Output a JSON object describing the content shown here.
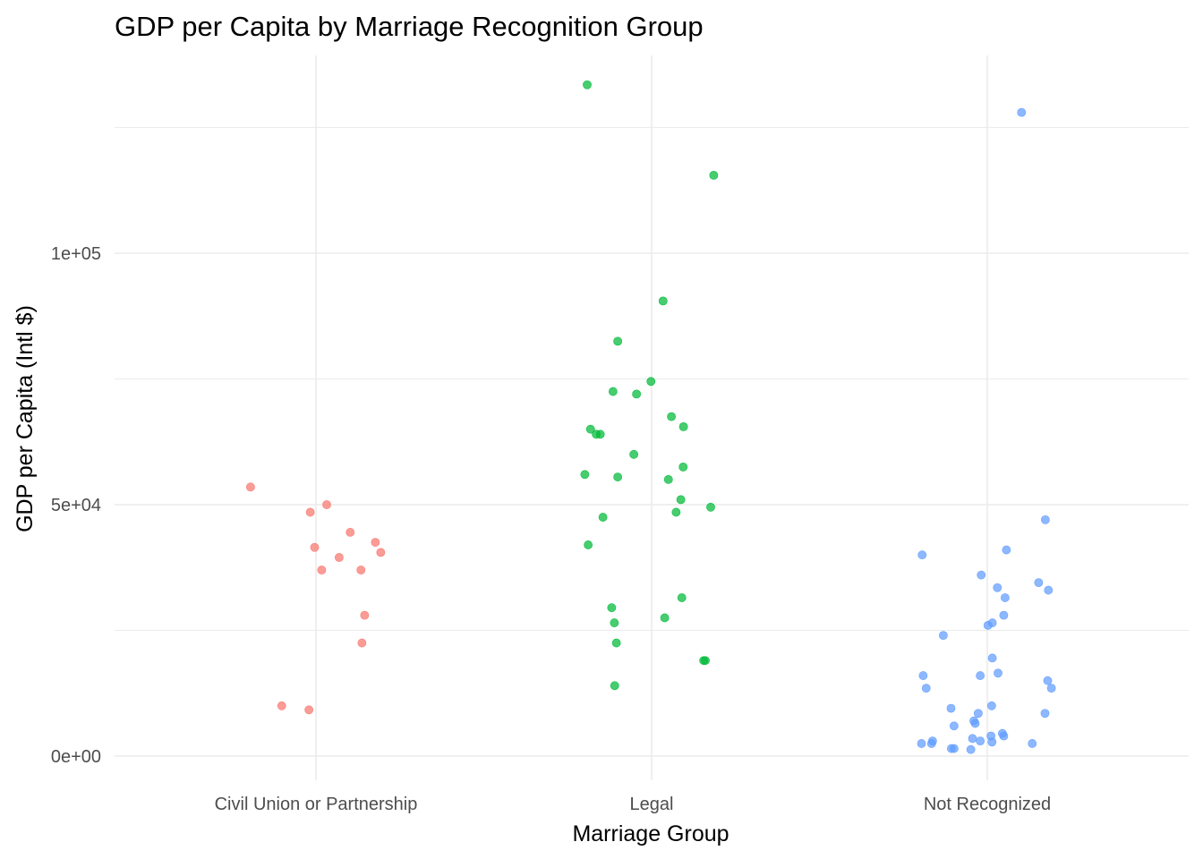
{
  "chart_data": {
    "type": "scatter",
    "title": "GDP per Capita by Marriage Recognition Group",
    "xlabel": "Marriage Group",
    "ylabel": "GDP per Capita (Intl $)",
    "categories": [
      "Civil Union or Partnership",
      "Legal",
      "Not Recognized"
    ],
    "ylim": [
      -4500,
      137000
    ],
    "y_ticks": [
      0,
      50000,
      100000
    ],
    "y_tick_labels": [
      "0e+00",
      "5e+04",
      "1e+05"
    ],
    "grid": true,
    "legend": "none",
    "series": [
      {
        "category": "Civil Union or Partnership",
        "color": "#F8766D",
        "x_jitter": [
          -0.195,
          0.032,
          -0.017,
          0.102,
          -0.004,
          0.177,
          0.193,
          0.069,
          0.017,
          0.134,
          0.145,
          0.137,
          -0.102,
          -0.021
        ],
        "values": [
          53500,
          50000,
          48500,
          44500,
          41500,
          42500,
          40500,
          39500,
          37000,
          37000,
          28000,
          22500,
          10000,
          9200
        ]
      },
      {
        "category": "Legal",
        "color": "#00BA38",
        "x_jitter": [
          -0.192,
          0.185,
          0.034,
          -0.101,
          -0.002,
          -0.115,
          -0.045,
          0.059,
          -0.165,
          -0.182,
          -0.153,
          0.095,
          -0.053,
          -0.199,
          -0.101,
          0.05,
          0.094,
          0.073,
          0.087,
          0.176,
          -0.145,
          -0.189,
          0.09,
          -0.119,
          0.039,
          -0.111,
          -0.105,
          0.155,
          0.16,
          -0.11
        ],
        "values": [
          133500,
          115500,
          90500,
          82500,
          74500,
          72500,
          72000,
          67500,
          64000,
          65000,
          64000,
          65500,
          60000,
          56000,
          55500,
          55000,
          57500,
          48500,
          51000,
          49500,
          47500,
          42000,
          31500,
          29500,
          27500,
          26500,
          22500,
          19000,
          19000,
          14000
        ]
      },
      {
        "category": "Not Recognized",
        "color": "#619CFF",
        "x_jitter": [
          0.102,
          0.173,
          -0.194,
          0.057,
          -0.018,
          0.03,
          0.053,
          0.153,
          0.182,
          0.002,
          0.049,
          0.015,
          -0.131,
          0.015,
          -0.191,
          -0.021,
          -0.182,
          -0.108,
          -0.027,
          0.032,
          -0.04,
          0.18,
          -0.036,
          0.191,
          0.172,
          0.013,
          -0.163,
          -0.099,
          -0.044,
          0.045,
          0.011,
          0.049,
          -0.196,
          -0.099,
          0.134,
          -0.166,
          0.014,
          -0.107,
          -0.049,
          -0.021
        ],
        "values": [
          128000,
          47000,
          40000,
          41000,
          36000,
          33500,
          31500,
          34500,
          33000,
          26000,
          28000,
          26500,
          24000,
          19500,
          16000,
          16000,
          13500,
          9500,
          8500,
          16500,
          7000,
          15000,
          6500,
          13500,
          8500,
          10000,
          3000,
          6000,
          3500,
          4500,
          4000,
          4000,
          2500,
          1500,
          2500,
          2500,
          2800,
          1500,
          1300,
          3000
        ]
      }
    ]
  }
}
